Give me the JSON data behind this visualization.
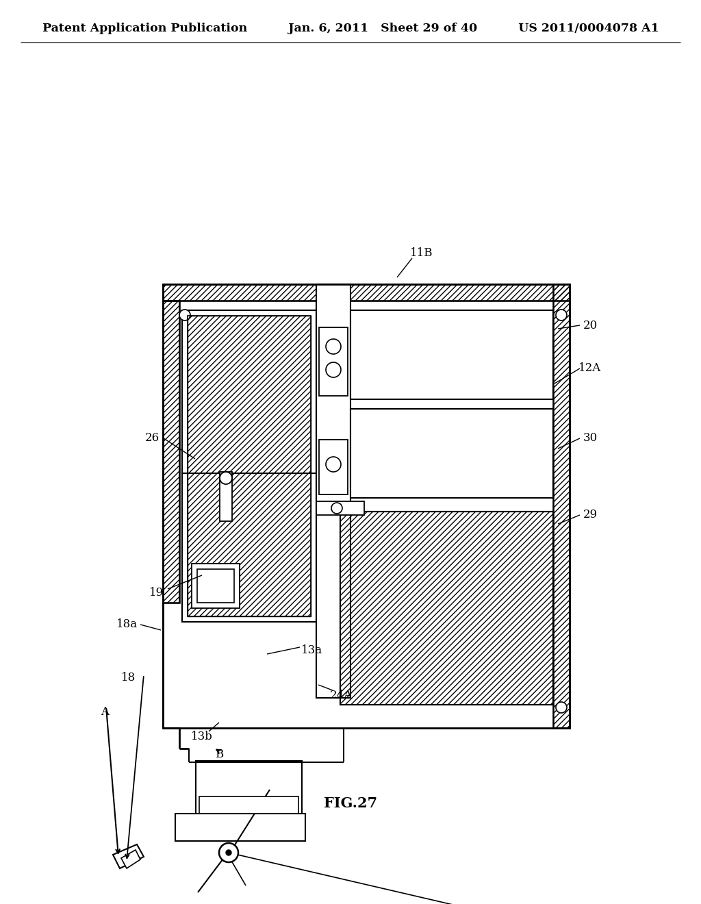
{
  "bg_color": "#ffffff",
  "header_left": "Patent Application Publication",
  "header_mid": "Jan. 6, 2011   Sheet 29 of 40",
  "header_right": "US 2011/0004078 A1",
  "figure_label": "FIG.27"
}
